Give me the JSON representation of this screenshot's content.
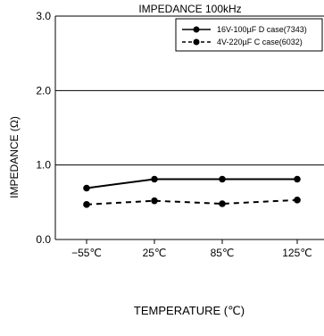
{
  "chart_data": {
    "type": "line",
    "title": "IMPEDANCE  100kHz",
    "xlabel": "TEMPERATURE  (℃)",
    "ylabel": "IMPEDANCE  (Ω)",
    "categories": [
      "−55℃",
      "25℃",
      "85℃",
      "125℃"
    ],
    "ylim": [
      0,
      3
    ],
    "yticks": [
      "0.0",
      "1.0",
      "2.0",
      "3.0"
    ],
    "ytick_values": [
      0,
      1,
      2,
      3
    ],
    "grid": "horizontal",
    "legend_position": "top-right",
    "series": [
      {
        "name": "16V-100µF D case(7343)",
        "line_style": "solid",
        "color": "#000000",
        "values": [
          0.69,
          0.81,
          0.81,
          0.81
        ]
      },
      {
        "name": "4V-220µF C case(6032)",
        "line_style": "dashed",
        "color": "#000000",
        "values": [
          0.47,
          0.52,
          0.48,
          0.53
        ]
      }
    ]
  }
}
